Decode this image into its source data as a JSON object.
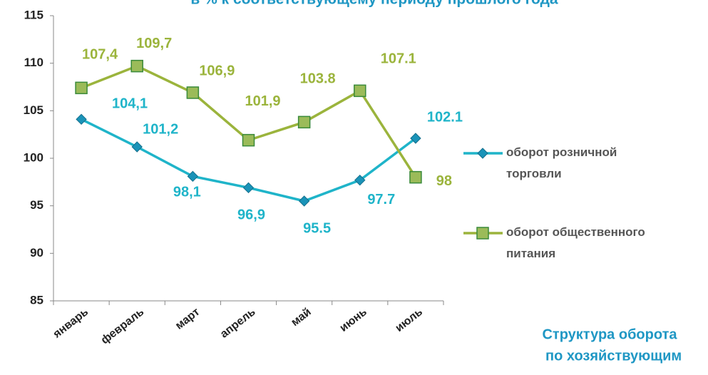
{
  "chart_data": {
    "type": "line",
    "title": "в % к соответствующему периоду прошлого года",
    "annotations": [
      "Структура оборота",
      "по хозяйствующим"
    ],
    "categories": [
      "январь",
      "февраль",
      "март",
      "апрель",
      "май",
      "июнь",
      "июль"
    ],
    "series": [
      {
        "name": "оборот розничной торговли",
        "color": "#1fb4c9",
        "marker": "diamond",
        "marker_color": "#1a93b8",
        "values": [
          104.1,
          101.2,
          98.1,
          96.9,
          95.5,
          97.7,
          102.1
        ],
        "value_labels": [
          "104,1",
          "101,2",
          "98,1",
          "96,9",
          "95.5",
          "97.7",
          "102.1"
        ]
      },
      {
        "name": "оборот общественного питания",
        "color": "#9bb43c",
        "marker": "square",
        "marker_color": "#9bbb59",
        "values": [
          107.4,
          109.7,
          106.9,
          101.9,
          103.8,
          107.1,
          98
        ],
        "value_labels": [
          "107,4",
          "109,7",
          "106,9",
          "101,9",
          "103.8",
          "107.1",
          "98"
        ]
      }
    ],
    "ylim": [
      85,
      115
    ],
    "yticks": [
      85,
      90,
      95,
      100,
      105,
      110,
      115
    ],
    "grid": false,
    "legend": "right"
  }
}
